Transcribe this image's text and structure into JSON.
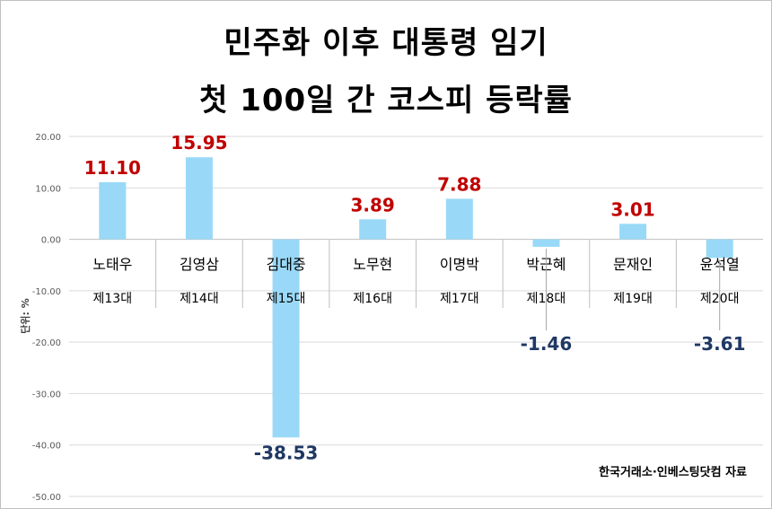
{
  "chart_data": {
    "type": "bar",
    "title": "민주화 이후 대통령 임기",
    "subtitle": "첫 100일 간 코스피 등락률",
    "ylabel": "단위: %",
    "ylim": [
      -50,
      20
    ],
    "yticks": [
      "20.00",
      "10.00",
      "0.00",
      "-10.00",
      "-20.00",
      "-30.00",
      "-40.00",
      "-50.00"
    ],
    "grid": true,
    "bar_color": "#99d9f7",
    "positive_label_color": "#c00000",
    "negative_label_color": "#1f3864",
    "categories": [
      {
        "name": "노태우",
        "term": "제13대"
      },
      {
        "name": "김영삼",
        "term": "제14대"
      },
      {
        "name": "김대중",
        "term": "제15대"
      },
      {
        "name": "노무현",
        "term": "제16대"
      },
      {
        "name": "이명박",
        "term": "제17대"
      },
      {
        "name": "박근혜",
        "term": "제18대"
      },
      {
        "name": "문재인",
        "term": "제19대"
      },
      {
        "name": "윤석열",
        "term": "제20대"
      }
    ],
    "values": [
      11.1,
      15.95,
      -38.53,
      3.89,
      7.88,
      -1.46,
      3.01,
      -3.61
    ],
    "value_labels": [
      "11.10",
      "15.95",
      "-38.53",
      "3.89",
      "7.88",
      "-1.46",
      "3.01",
      "-3.61"
    ]
  },
  "source": "한국거래소·인베스팅닷컴 자료"
}
